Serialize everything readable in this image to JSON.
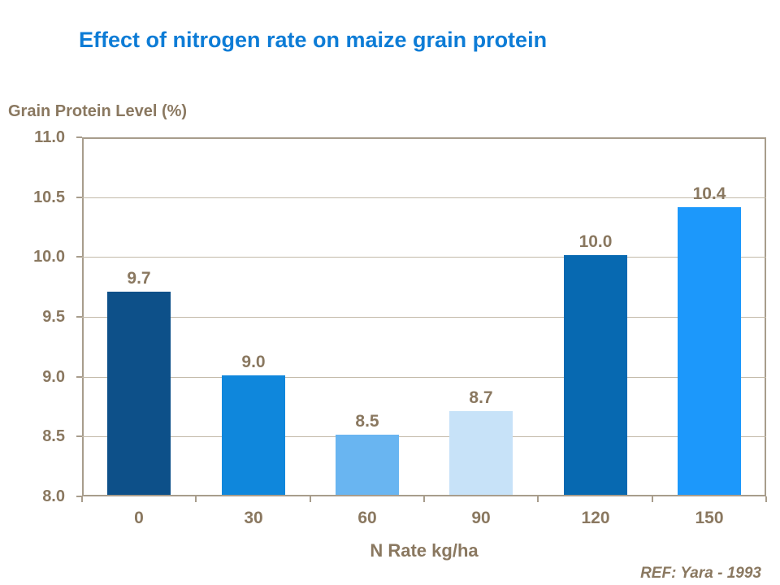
{
  "page": {
    "background": "#ffffff"
  },
  "chart_data": {
    "type": "bar",
    "title": "Effect of nitrogen rate on maize grain protein",
    "ylabel": "Grain Protein Level (%)",
    "xlabel": "N Rate kg/ha",
    "categories": [
      "0",
      "30",
      "60",
      "90",
      "120",
      "150"
    ],
    "values": [
      9.7,
      9.0,
      8.5,
      8.7,
      10.0,
      10.4
    ],
    "data_labels": [
      "9.7",
      "9.0",
      "8.5",
      "8.7",
      "10.0",
      "10.4"
    ],
    "bar_colors": [
      "#0d5089",
      "#0f87dc",
      "#69b5f1",
      "#c7e2f8",
      "#0769b1",
      "#1c98fb"
    ],
    "ylim": [
      8.0,
      11.0
    ],
    "ytick_step": 0.5,
    "ytick_labels": [
      "11.0",
      "10.5",
      "10.0",
      "9.5",
      "9.0",
      "8.5",
      "8.0"
    ],
    "grid": "horizontal",
    "legend": "none",
    "annotation": "REF: Yara - 1993",
    "colors": {
      "title_text": "#0d7cd6",
      "axis_text": "#8a7860",
      "axis_line": "#a89d8c",
      "gridline": "#c3baa9",
      "background": "#ffffff"
    }
  }
}
